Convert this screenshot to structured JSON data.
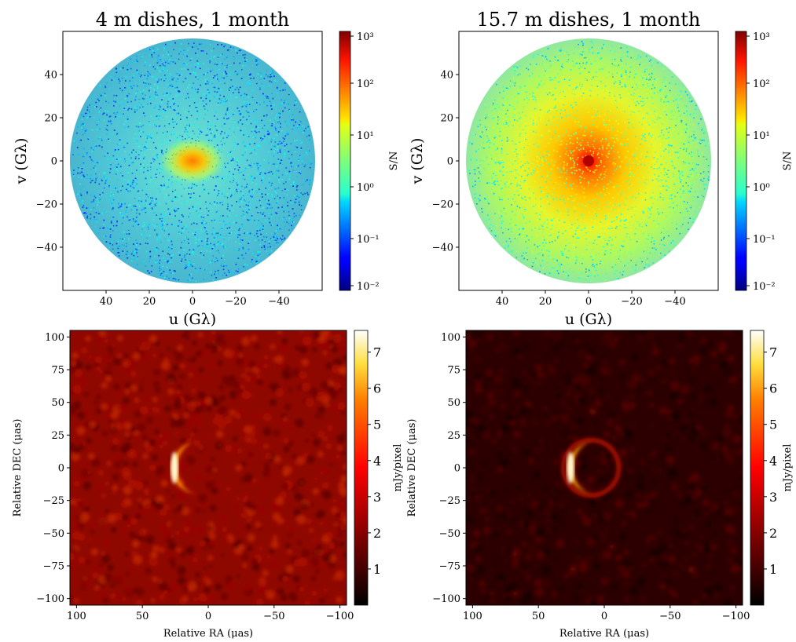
{
  "chart_data": [
    {
      "type": "scatter",
      "title": "4 m dishes, 1 month",
      "xlabel": "u (Gλ)",
      "ylabel": "v (Gλ)",
      "xlim": [
        60,
        -60
      ],
      "ylim": [
        -60,
        60
      ],
      "xticks": [
        40,
        20,
        0,
        -20,
        -40
      ],
      "xtick_labels": [
        "40",
        "20",
        "0",
        "−20",
        "−40"
      ],
      "yticks": [
        40,
        20,
        0,
        -20,
        -40
      ],
      "ytick_labels": [
        "40",
        "20",
        "0",
        "−20",
        "−40"
      ],
      "uv_coverage_radius_glambda": 57,
      "colorbar": {
        "label": "S/N",
        "scale": "log",
        "range": [
          0.01,
          1000
        ],
        "ticks": [
          "10⁻²",
          "10⁻¹",
          "10⁰",
          "10¹",
          "10²",
          "10³"
        ],
        "colormap": "jet"
      },
      "snr_description": {
        "center_peak": 80,
        "typical": 0.5,
        "edge": 0.3
      }
    },
    {
      "type": "scatter",
      "title": "15.7 m dishes, 1 month",
      "xlabel": "u (Gλ)",
      "ylabel": "v (Gλ)",
      "xlim": [
        60,
        -60
      ],
      "ylim": [
        -60,
        60
      ],
      "xticks": [
        40,
        20,
        0,
        -20,
        -40
      ],
      "xtick_labels": [
        "40",
        "20",
        "0",
        "−20",
        "−40"
      ],
      "yticks": [
        40,
        20,
        0,
        -20,
        -40
      ],
      "ytick_labels": [
        "40",
        "20",
        "0",
        "−20",
        "−40"
      ],
      "uv_coverage_radius_glambda": 57,
      "colorbar": {
        "label": "S/N",
        "scale": "log",
        "range": [
          0.01,
          1000
        ],
        "ticks": [
          "10⁻²",
          "10⁻¹",
          "10⁰",
          "10¹",
          "10²",
          "10³"
        ],
        "colormap": "jet"
      },
      "snr_description": {
        "center_peak": 1000,
        "typical": 10,
        "edge": 1
      }
    },
    {
      "type": "heatmap",
      "xlabel": "Relative RA (μas)",
      "ylabel": "Relative DEC (μas)",
      "xlim": [
        105,
        -105
      ],
      "ylim": [
        -105,
        105
      ],
      "xticks": [
        100,
        50,
        0,
        -50,
        -100
      ],
      "xtick_labels": [
        "100",
        "50",
        "0",
        "−50",
        "−100"
      ],
      "yticks": [
        100,
        75,
        50,
        25,
        0,
        -25,
        -50,
        -75,
        -100
      ],
      "ytick_labels": [
        "100",
        "75",
        "50",
        "25",
        "0",
        "−25",
        "−50",
        "−75",
        "−100"
      ],
      "colorbar": {
        "label": "mJy/pixel",
        "range": [
          0,
          7.6
        ],
        "ticks": [
          1,
          2,
          3,
          4,
          5,
          6,
          7
        ],
        "tick_labels": [
          "1",
          "2",
          "3",
          "4",
          "5",
          "6",
          "7"
        ],
        "colormap": "afmhot"
      },
      "crescent": {
        "center_ra": 10,
        "center_dec": 0,
        "radius": 20,
        "peak_mjy": 7.4,
        "bright_side": "east"
      },
      "background_noise_mjy": 1.0
    },
    {
      "type": "heatmap",
      "xlabel": "Relative RA (μas)",
      "ylabel": "Relative DEC (μas)",
      "xlim": [
        105,
        -105
      ],
      "ylim": [
        -105,
        105
      ],
      "xticks": [
        100,
        50,
        0,
        -50,
        -100
      ],
      "xtick_labels": [
        "100",
        "50",
        "0",
        "−50",
        "−100"
      ],
      "yticks": [
        100,
        75,
        50,
        25,
        0,
        -25,
        -50,
        -75,
        -100
      ],
      "ytick_labels": [
        "100",
        "75",
        "50",
        "25",
        "0",
        "−25",
        "−50",
        "−75",
        "−100"
      ],
      "colorbar": {
        "label": "mJy/pixel",
        "range": [
          0,
          7.6
        ],
        "ticks": [
          1,
          2,
          3,
          4,
          5,
          6,
          7
        ],
        "tick_labels": [
          "1",
          "2",
          "3",
          "4",
          "5",
          "6",
          "7"
        ],
        "colormap": "afmhot"
      },
      "crescent": {
        "center_ra": 10,
        "center_dec": 0,
        "radius": 20,
        "peak_mjy": 7.6,
        "bright_side": "east"
      },
      "background_noise_mjy": 0.3
    }
  ]
}
